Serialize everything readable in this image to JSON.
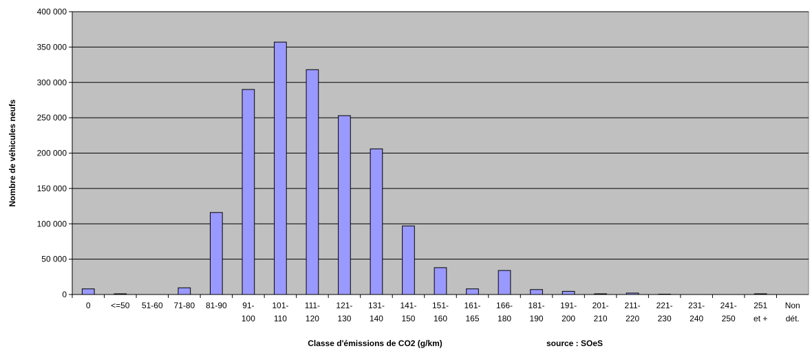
{
  "chart_data": {
    "type": "bar",
    "categories": [
      [
        "0"
      ],
      [
        "<=50"
      ],
      [
        "51-60"
      ],
      [
        "71-80"
      ],
      [
        "81-90"
      ],
      [
        "91-",
        "100"
      ],
      [
        "101-",
        "110"
      ],
      [
        "111-",
        "120"
      ],
      [
        "121-",
        "130"
      ],
      [
        "131-",
        "140"
      ],
      [
        "141-",
        "150"
      ],
      [
        "151-",
        "160"
      ],
      [
        "161-",
        "165"
      ],
      [
        "166-",
        "180"
      ],
      [
        "181-",
        "190"
      ],
      [
        "191-",
        "200"
      ],
      [
        "201-",
        "210"
      ],
      [
        "211-",
        "220"
      ],
      [
        "221-",
        "230"
      ],
      [
        "231-",
        "240"
      ],
      [
        "241-",
        "250"
      ],
      [
        "251",
        "et +"
      ],
      [
        "Non",
        "dét."
      ]
    ],
    "values": [
      8000,
      1000,
      0,
      9500,
      116000,
      290000,
      357000,
      318000,
      253000,
      206000,
      97000,
      38000,
      8000,
      34000,
      7000,
      4500,
      1000,
      2000,
      500,
      0,
      0,
      1000,
      0
    ],
    "ylim": [
      0,
      400000
    ],
    "yticks": [
      0,
      50000,
      100000,
      150000,
      200000,
      250000,
      300000,
      350000,
      400000
    ],
    "ytick_labels": [
      "0",
      "50 000",
      "100 000",
      "150 000",
      "200 000",
      "250 000",
      "300 000",
      "350 000",
      "400 000"
    ],
    "xlabel": "Classe d'émissions de CO2 (g/km)",
    "source": "source : SOeS",
    "ylabel": "Nombre de véhicules neufs",
    "grid": "horizontal",
    "colors": {
      "bar": "#9999ff",
      "plot_bg": "#c0c0c0",
      "bar_border": "#000000"
    }
  }
}
